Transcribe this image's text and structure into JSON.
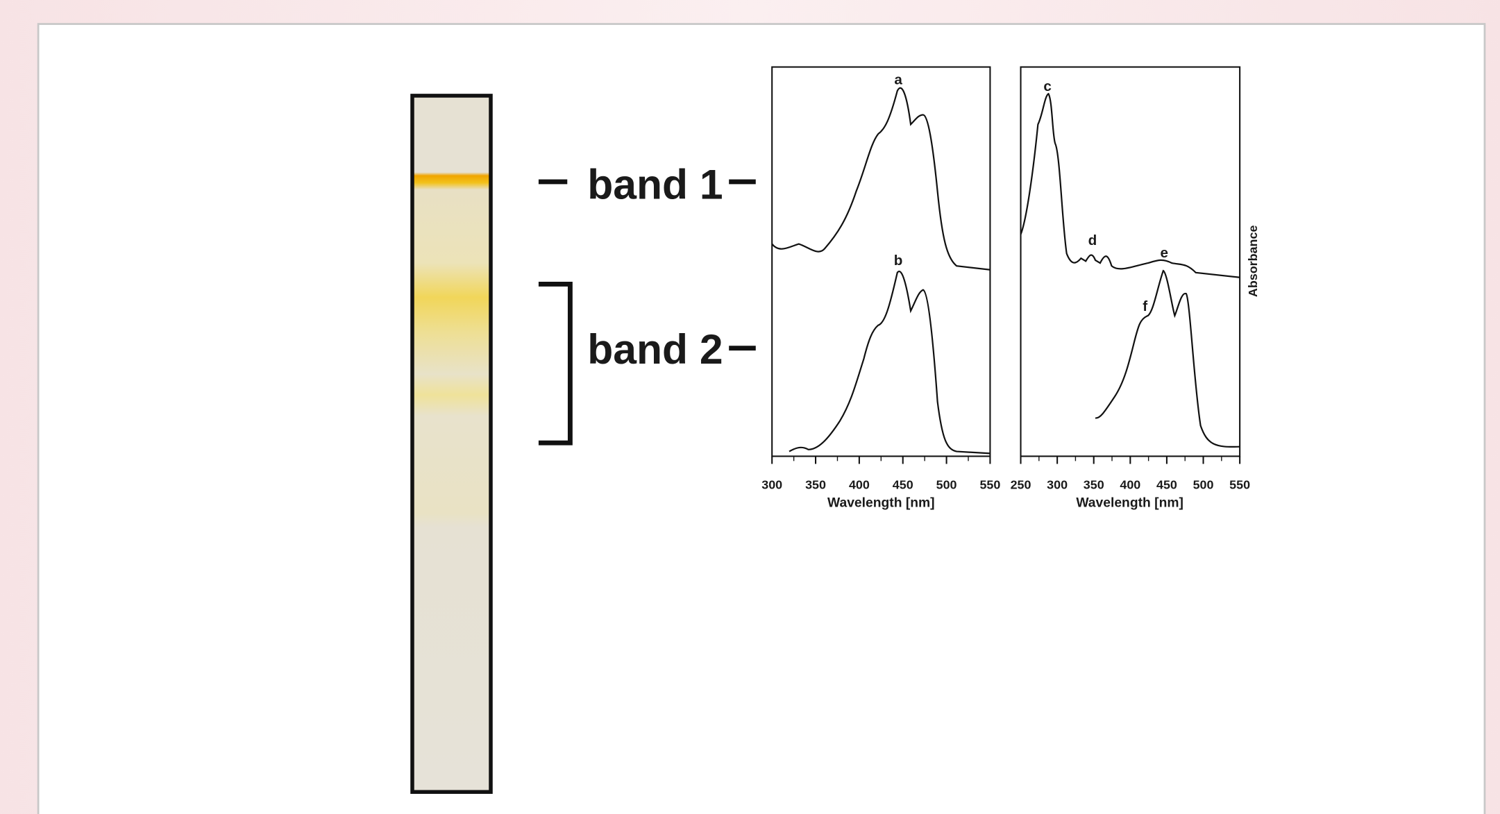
{
  "figure": {
    "bands": [
      {
        "label": "band 1"
      },
      {
        "label": "band 2"
      }
    ],
    "plots": [
      {
        "xticks": [
          300,
          350,
          400,
          450,
          500,
          550
        ],
        "xlim": [
          300,
          550
        ],
        "x_label": "Wavelength [nm]",
        "peak_labels": [
          "a",
          "b"
        ]
      },
      {
        "xticks": [
          250,
          300,
          350,
          400,
          450,
          500,
          550
        ],
        "xlim": [
          250,
          550
        ],
        "x_label": "Wavelength [nm]",
        "peak_labels": [
          "c",
          "d",
          "e",
          "f"
        ],
        "y_label": "Absorbance"
      }
    ]
  }
}
